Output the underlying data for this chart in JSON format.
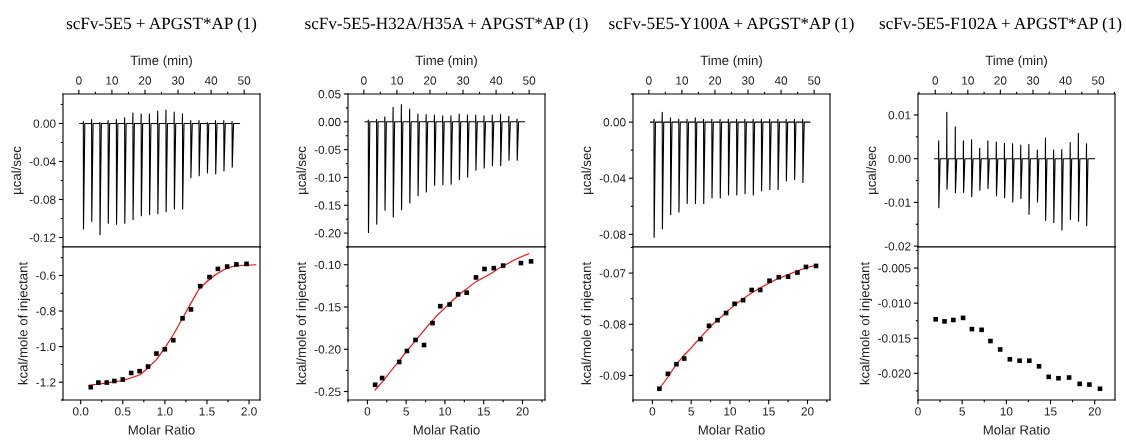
{
  "chart_data": [
    {
      "type": "line",
      "title": "scFv-5E5 + APGST*AP (1)",
      "xlabel": "Time (min)",
      "ylabel": "µcal/sec",
      "xlim": [
        -4.8,
        54.8
      ],
      "xticks": [
        0,
        10,
        20,
        30,
        40,
        50
      ],
      "ylim": [
        -0.13,
        0.031
      ],
      "yticks": [
        -0.12,
        -0.08,
        -0.04,
        {
          "value": 0,
          "label": "0.00"
        }
      ],
      "series": [
        {
          "color": "#000000",
          "x": [
            0.3,
            1.3,
            1.35,
            1.4,
            1.8,
            3.8,
            3.85,
            3.9,
            4.3,
            6.3,
            6.35,
            6.4,
            6.8,
            8.8,
            8.85,
            8.9,
            9.3,
            11.3,
            11.35,
            11.4,
            11.8,
            13.8,
            13.85,
            13.9,
            14.3,
            16.3,
            16.35,
            16.4,
            16.8,
            18.8,
            18.85,
            18.9,
            19.3,
            21.3,
            21.35,
            21.4,
            21.8,
            23.8,
            23.85,
            23.9,
            24.3,
            26.3,
            26.35,
            26.4,
            26.8,
            28.8,
            28.85,
            28.9,
            29.3,
            31.3,
            31.35,
            31.4,
            31.8,
            33.8,
            33.85,
            33.9,
            34.3,
            36.3,
            36.35,
            36.4,
            36.8,
            38.8,
            38.85,
            38.9,
            39.3,
            41.3,
            41.35,
            41.4,
            41.8,
            43.8,
            43.85,
            43.9,
            44.3,
            46.3,
            46.35,
            46.4,
            46.8,
            48.6
          ],
          "values": [
            0,
            0,
            0.002,
            -0.111,
            0,
            0,
            0.004,
            -0.103,
            0,
            0,
            0.001,
            -0.117,
            0,
            0,
            0.003,
            -0.105,
            0,
            0,
            0.004,
            -0.106,
            0,
            0,
            0.006,
            -0.105,
            0,
            0,
            0.011,
            -0.101,
            0,
            0,
            0.01,
            -0.097,
            0,
            0,
            0.01,
            -0.096,
            0,
            0,
            0.013,
            -0.095,
            0,
            0,
            0.014,
            -0.093,
            0,
            0,
            0.012,
            -0.09,
            0,
            0,
            0.01,
            -0.09,
            0,
            0,
            0.003,
            -0.057,
            0,
            0,
            0.003,
            -0.055,
            0,
            0,
            0.001,
            -0.052,
            0,
            0,
            0.003,
            -0.053,
            0,
            0,
            0.003,
            -0.05,
            0,
            0,
            0.002,
            -0.046,
            0,
            0
          ]
        }
      ]
    },
    {
      "type": "line",
      "title": "scFv-5E5-H32A/H35A + APGST*AP (1)",
      "xlabel": "Time (min)",
      "ylabel": "µcal/sec",
      "xlim": [
        -4.8,
        54.8
      ],
      "xticks": [
        0,
        10,
        20,
        30,
        40,
        50
      ],
      "ylim": [
        -0.225,
        0.05
      ],
      "yticks": [
        {
          "value": -0.2,
          "label": "-0.20"
        },
        -0.15,
        {
          "value": -0.1,
          "label": "-0.10"
        },
        -0.05,
        {
          "value": 0,
          "label": "0.00"
        },
        0.05
      ],
      "series": [
        {
          "color": "#000000",
          "x": [
            0.4,
            1.3,
            1.35,
            1.4,
            1.8,
            3.8,
            3.85,
            3.9,
            4.3,
            6.3,
            6.35,
            6.4,
            6.8,
            8.8,
            8.85,
            8.9,
            9.3,
            11.3,
            11.35,
            11.4,
            11.8,
            13.8,
            13.85,
            13.9,
            14.3,
            16.3,
            16.35,
            16.4,
            16.8,
            18.8,
            18.85,
            18.9,
            19.3,
            21.3,
            21.35,
            21.4,
            21.8,
            23.8,
            23.85,
            23.9,
            24.3,
            26.3,
            26.35,
            26.4,
            26.8,
            28.8,
            28.85,
            28.9,
            29.3,
            31.3,
            31.35,
            31.4,
            31.8,
            33.8,
            33.85,
            33.9,
            34.3,
            36.3,
            36.35,
            36.4,
            36.8,
            38.8,
            38.85,
            38.9,
            39.3,
            41.3,
            41.35,
            41.4,
            41.8,
            43.8,
            43.85,
            43.9,
            44.3,
            46.3,
            46.35,
            46.4,
            46.8,
            48.6
          ],
          "values": [
            0,
            0,
            0.003,
            -0.199,
            0,
            0,
            0.004,
            -0.184,
            0,
            0,
            0.009,
            -0.159,
            0,
            0,
            0.026,
            -0.171,
            0,
            0,
            0.031,
            -0.158,
            0,
            0,
            0.023,
            -0.146,
            0,
            0,
            0.014,
            -0.133,
            0,
            0,
            0.013,
            -0.126,
            0,
            0,
            0.012,
            -0.114,
            0,
            0,
            0.011,
            -0.113,
            0,
            0,
            0.011,
            -0.112,
            0,
            0,
            0.014,
            -0.104,
            0,
            0,
            0.012,
            -0.099,
            0,
            0,
            0.012,
            -0.087,
            0,
            0,
            0.011,
            -0.083,
            0,
            0,
            0.012,
            -0.079,
            0,
            0,
            0.013,
            -0.079,
            0,
            0,
            0.01,
            -0.069,
            0,
            0,
            0.005,
            -0.069,
            0,
            0
          ]
        }
      ]
    },
    {
      "type": "line",
      "title": "scFv-5E5-Y100A + APGST*AP (1)",
      "xlabel": "Time (min)",
      "ylabel": "µcal/sec",
      "xlim": [
        -4.8,
        54.8
      ],
      "xticks": [
        0,
        10,
        20,
        30,
        40,
        50
      ],
      "ylim": [
        -0.089,
        0.02
      ],
      "yticks": [
        -0.08,
        -0.04,
        {
          "value": 0,
          "label": "0.00"
        }
      ],
      "series": [
        {
          "color": "#000000",
          "x": [
            0.5,
            1.5,
            1.55,
            1.6,
            2.0,
            4.0,
            4.05,
            4.1,
            4.5,
            6.5,
            6.55,
            6.6,
            7.0,
            9.0,
            9.05,
            9.1,
            9.5,
            11.5,
            11.55,
            11.6,
            12.0,
            14.0,
            14.05,
            14.1,
            14.5,
            16.5,
            16.55,
            16.6,
            17.0,
            19.0,
            19.05,
            19.1,
            19.5,
            21.5,
            21.55,
            21.6,
            22.0,
            24.0,
            24.05,
            24.1,
            24.5,
            26.5,
            26.55,
            26.6,
            27.0,
            29.0,
            29.05,
            29.1,
            29.5,
            31.5,
            31.55,
            31.6,
            32.0,
            34.0,
            34.05,
            34.1,
            34.5,
            36.5,
            36.55,
            36.6,
            37.0,
            39.0,
            39.05,
            39.1,
            39.5,
            41.5,
            41.55,
            41.6,
            42.0,
            44.0,
            44.05,
            44.1,
            44.5,
            46.5,
            46.55,
            46.6,
            47.0,
            48.7
          ],
          "values": [
            0,
            0,
            0.002,
            -0.082,
            0,
            0,
            0.007,
            -0.076,
            0,
            0,
            0.003,
            -0.066,
            0,
            0,
            0.002,
            -0.064,
            0,
            0,
            0.002,
            -0.058,
            0,
            0,
            0.003,
            -0.058,
            0,
            0,
            0.002,
            -0.058,
            0,
            0,
            0.002,
            -0.054,
            0,
            0,
            0.002,
            -0.054,
            0,
            0,
            0.002,
            -0.052,
            0,
            0,
            0.002,
            -0.052,
            0,
            0,
            0.002,
            -0.051,
            0,
            0,
            0.002,
            -0.052,
            0,
            0,
            0.002,
            -0.049,
            0,
            0,
            0.002,
            -0.048,
            0,
            0,
            0.002,
            -0.048,
            0,
            0,
            0.002,
            -0.042,
            0,
            0,
            0.002,
            -0.041,
            0,
            0,
            0.002,
            -0.043,
            0,
            0
          ]
        }
      ]
    },
    {
      "type": "line",
      "title": "scFv-5E5-F102A + APGST*AP (1)",
      "xlabel": "Time (min)",
      "ylabel": "µcal/sec",
      "xlim": [
        -5.3,
        55.2
      ],
      "xticks": [
        0,
        10,
        20,
        30,
        40,
        50
      ],
      "ylim": [
        -0.0202,
        0.0148
      ],
      "yticks": [
        -0.02,
        -0.01,
        {
          "value": 0,
          "label": "0.00"
        },
        0.01
      ],
      "series": [
        {
          "color": "#000000",
          "x": [
            -0.2,
            1.0,
            1.05,
            1.1,
            1.5,
            3.5,
            3.55,
            3.6,
            4.0,
            6.1,
            6.15,
            6.2,
            6.6,
            8.6,
            8.65,
            8.7,
            9.1,
            11.1,
            11.15,
            11.2,
            11.6,
            13.6,
            13.65,
            13.7,
            14.1,
            16.1,
            16.15,
            16.2,
            16.6,
            18.7,
            18.75,
            18.8,
            19.2,
            21.2,
            21.25,
            21.3,
            21.7,
            23.7,
            23.75,
            23.8,
            24.2,
            26.2,
            26.25,
            26.3,
            26.7,
            28.7,
            28.75,
            28.8,
            29.2,
            31.3,
            31.35,
            31.4,
            31.8,
            33.8,
            33.85,
            33.9,
            34.3,
            36.3,
            36.35,
            36.4,
            36.8,
            38.8,
            38.85,
            38.9,
            39.3,
            41.4,
            41.45,
            41.5,
            41.9,
            43.9,
            43.95,
            44.0,
            44.4,
            46.4,
            46.45,
            46.5,
            46.9,
            48.9
          ],
          "values": [
            0,
            0,
            0.0041,
            -0.0112,
            0,
            0,
            0.0106,
            -0.007,
            0,
            0,
            0.0073,
            -0.0078,
            0,
            0,
            0.0041,
            -0.0077,
            0,
            0,
            0.0043,
            -0.0087,
            0,
            0,
            0.0024,
            -0.0072,
            0,
            0,
            0.0041,
            -0.0068,
            0,
            0,
            0.0038,
            -0.0085,
            0,
            0,
            0.0035,
            -0.0089,
            0,
            0,
            0.0034,
            -0.0099,
            0,
            0,
            0.0031,
            -0.0091,
            0,
            0,
            0.0033,
            -0.0127,
            0,
            0,
            0.002,
            -0.0099,
            0,
            0,
            0.0047,
            -0.0141,
            0,
            0,
            0.002,
            -0.0146,
            0,
            0,
            0.0021,
            -0.0163,
            0,
            0,
            0.0037,
            -0.0139,
            0,
            0,
            0.0058,
            -0.0143,
            0,
            0,
            0.0034,
            -0.0153,
            0,
            0
          ]
        }
      ]
    },
    {
      "type": "scatter",
      "xlabel": "Molar Ratio",
      "ylabel": "kcal/mole of injectant",
      "xlim": [
        -0.21,
        2.13
      ],
      "xticks": [
        {
          "value": 0,
          "label": "0.0"
        },
        0.5,
        {
          "value": 1,
          "label": "1.0"
        },
        1.5,
        {
          "value": 2,
          "label": "2.0"
        }
      ],
      "ylim": [
        -1.3,
        -0.44
      ],
      "yticks": [
        -1.2,
        {
          "value": -1,
          "label": "-1.0"
        },
        -0.8,
        -0.6
      ],
      "series": [
        {
          "color": "#000000",
          "marker": "square",
          "x": [
            0.12,
            0.21,
            0.31,
            0.4,
            0.5,
            0.6,
            0.7,
            0.8,
            0.9,
            1.0,
            1.1,
            1.21,
            1.31,
            1.42,
            1.53,
            1.63,
            1.74,
            1.85,
            1.97
          ],
          "values": [
            -1.228,
            -1.202,
            -1.202,
            -1.193,
            -1.185,
            -1.148,
            -1.138,
            -1.112,
            -1.039,
            -1.015,
            -0.964,
            -0.841,
            -0.791,
            -0.66,
            -0.609,
            -0.563,
            -0.55,
            -0.538,
            -0.535
          ]
        },
        {
          "type": "line",
          "color": "#ff0000",
          "x": [
            0.1,
            0.3,
            0.5,
            0.7,
            0.8,
            0.9,
            1.0,
            1.1,
            1.2,
            1.3,
            1.4,
            1.5,
            1.6,
            1.7,
            1.8,
            1.9,
            2.08
          ],
          "values": [
            -1.217,
            -1.205,
            -1.19,
            -1.16,
            -1.12,
            -1.073,
            -1.007,
            -0.933,
            -0.849,
            -0.764,
            -0.68,
            -0.634,
            -0.596,
            -0.568,
            -0.55,
            -0.544,
            -0.54
          ]
        }
      ]
    },
    {
      "type": "scatter",
      "xlabel": "Molar Ratio",
      "ylabel": "kcal/mole of injectant",
      "xlim": [
        -2.5,
        22.9
      ],
      "xticks": [
        0,
        5,
        10,
        15,
        20
      ],
      "ylim": [
        -0.26,
        -0.079
      ],
      "yticks": [
        -0.25,
        {
          "value": -0.2,
          "label": "-0.20"
        },
        -0.15,
        {
          "value": -0.1,
          "label": "-0.10"
        }
      ],
      "series": [
        {
          "color": "#000000",
          "marker": "square",
          "x": [
            1.0,
            1.9,
            4.1,
            5.1,
            6.2,
            7.3,
            8.4,
            9.4,
            10.6,
            11.7,
            12.8,
            14.0,
            15.1,
            16.3,
            17.5,
            19.8,
            21.1
          ],
          "values": [
            -0.242,
            -0.234,
            -0.215,
            -0.202,
            -0.189,
            -0.195,
            -0.169,
            -0.149,
            -0.147,
            -0.135,
            -0.133,
            -0.115,
            -0.105,
            -0.104,
            -0.101,
            -0.098,
            -0.096
          ]
        },
        {
          "type": "line",
          "color": "#ff0000",
          "x": [
            1.0,
            2,
            3,
            4,
            5,
            6,
            7,
            8,
            9,
            10,
            11,
            12,
            13,
            14,
            15,
            16,
            17,
            18,
            19,
            20,
            20.8
          ],
          "values": [
            -0.248,
            -0.238,
            -0.226,
            -0.215,
            -0.203,
            -0.192,
            -0.181,
            -0.17,
            -0.16,
            -0.151,
            -0.142,
            -0.134,
            -0.127,
            -0.12,
            -0.115,
            -0.11,
            -0.104,
            -0.099,
            -0.094,
            -0.09,
            -0.087
          ]
        }
      ]
    },
    {
      "type": "scatter",
      "xlabel": "Molar Ratio",
      "ylabel": "kcal/mole of injectant",
      "xlim": [
        -2.5,
        22.9
      ],
      "xticks": [
        0,
        5,
        10,
        15,
        20
      ],
      "ylim": [
        -0.0948,
        -0.0649
      ],
      "yticks": [
        -0.09,
        -0.08,
        -0.07
      ],
      "series": [
        {
          "color": "#000000",
          "marker": "square",
          "x": [
            0.9,
            2.0,
            3.1,
            4.1,
            6.2,
            7.3,
            8.4,
            9.5,
            10.6,
            11.7,
            12.8,
            13.9,
            15.1,
            16.3,
            17.5,
            18.7,
            19.8,
            21.1
          ],
          "values": [
            -0.0926,
            -0.0897,
            -0.0878,
            -0.0867,
            -0.0829,
            -0.0803,
            -0.0792,
            -0.0778,
            -0.076,
            -0.0753,
            -0.0733,
            -0.0733,
            -0.0715,
            -0.0708,
            -0.0707,
            -0.0699,
            -0.0688,
            -0.0686
          ]
        },
        {
          "type": "line",
          "color": "#ff0000",
          "x": [
            0.9,
            2,
            3,
            4,
            5,
            6,
            7,
            8,
            9,
            10,
            11,
            12,
            13,
            14,
            15,
            16,
            17,
            18,
            19,
            20,
            21.1
          ],
          "values": [
            -0.0926,
            -0.0903,
            -0.088,
            -0.0862,
            -0.0846,
            -0.0829,
            -0.0813,
            -0.0797,
            -0.0784,
            -0.077,
            -0.0758,
            -0.0747,
            -0.0737,
            -0.0728,
            -0.072,
            -0.0712,
            -0.0706,
            -0.07,
            -0.0694,
            -0.0689,
            -0.0684
          ]
        }
      ]
    },
    {
      "type": "scatter",
      "xlabel": "Molar Ratio",
      "ylabel": "kcal/mole of injectant",
      "xlim": [
        0,
        22.3
      ],
      "xticks": [
        0,
        5,
        10,
        15,
        20
      ],
      "ylim": [
        -0.0238,
        -0.002
      ],
      "yticks": [
        {
          "value": -0.02,
          "label": "-0.020"
        },
        -0.015,
        {
          "value": -0.01,
          "label": "-0.010"
        },
        -0.005
      ],
      "series": [
        {
          "color": "#000000",
          "marker": "square",
          "x": [
            2.0,
            3.0,
            4.0,
            5.1,
            6.1,
            7.2,
            8.2,
            9.3,
            10.4,
            11.5,
            12.6,
            13.7,
            14.8,
            15.9,
            17.1,
            18.3,
            19.4,
            20.6
          ],
          "values": [
            -0.0123,
            -0.0126,
            -0.0124,
            -0.0121,
            -0.0137,
            -0.0138,
            -0.0154,
            -0.0166,
            -0.018,
            -0.0182,
            -0.0182,
            -0.019,
            -0.0205,
            -0.0207,
            -0.0206,
            -0.0215,
            -0.0216,
            -0.0222
          ]
        }
      ]
    }
  ]
}
